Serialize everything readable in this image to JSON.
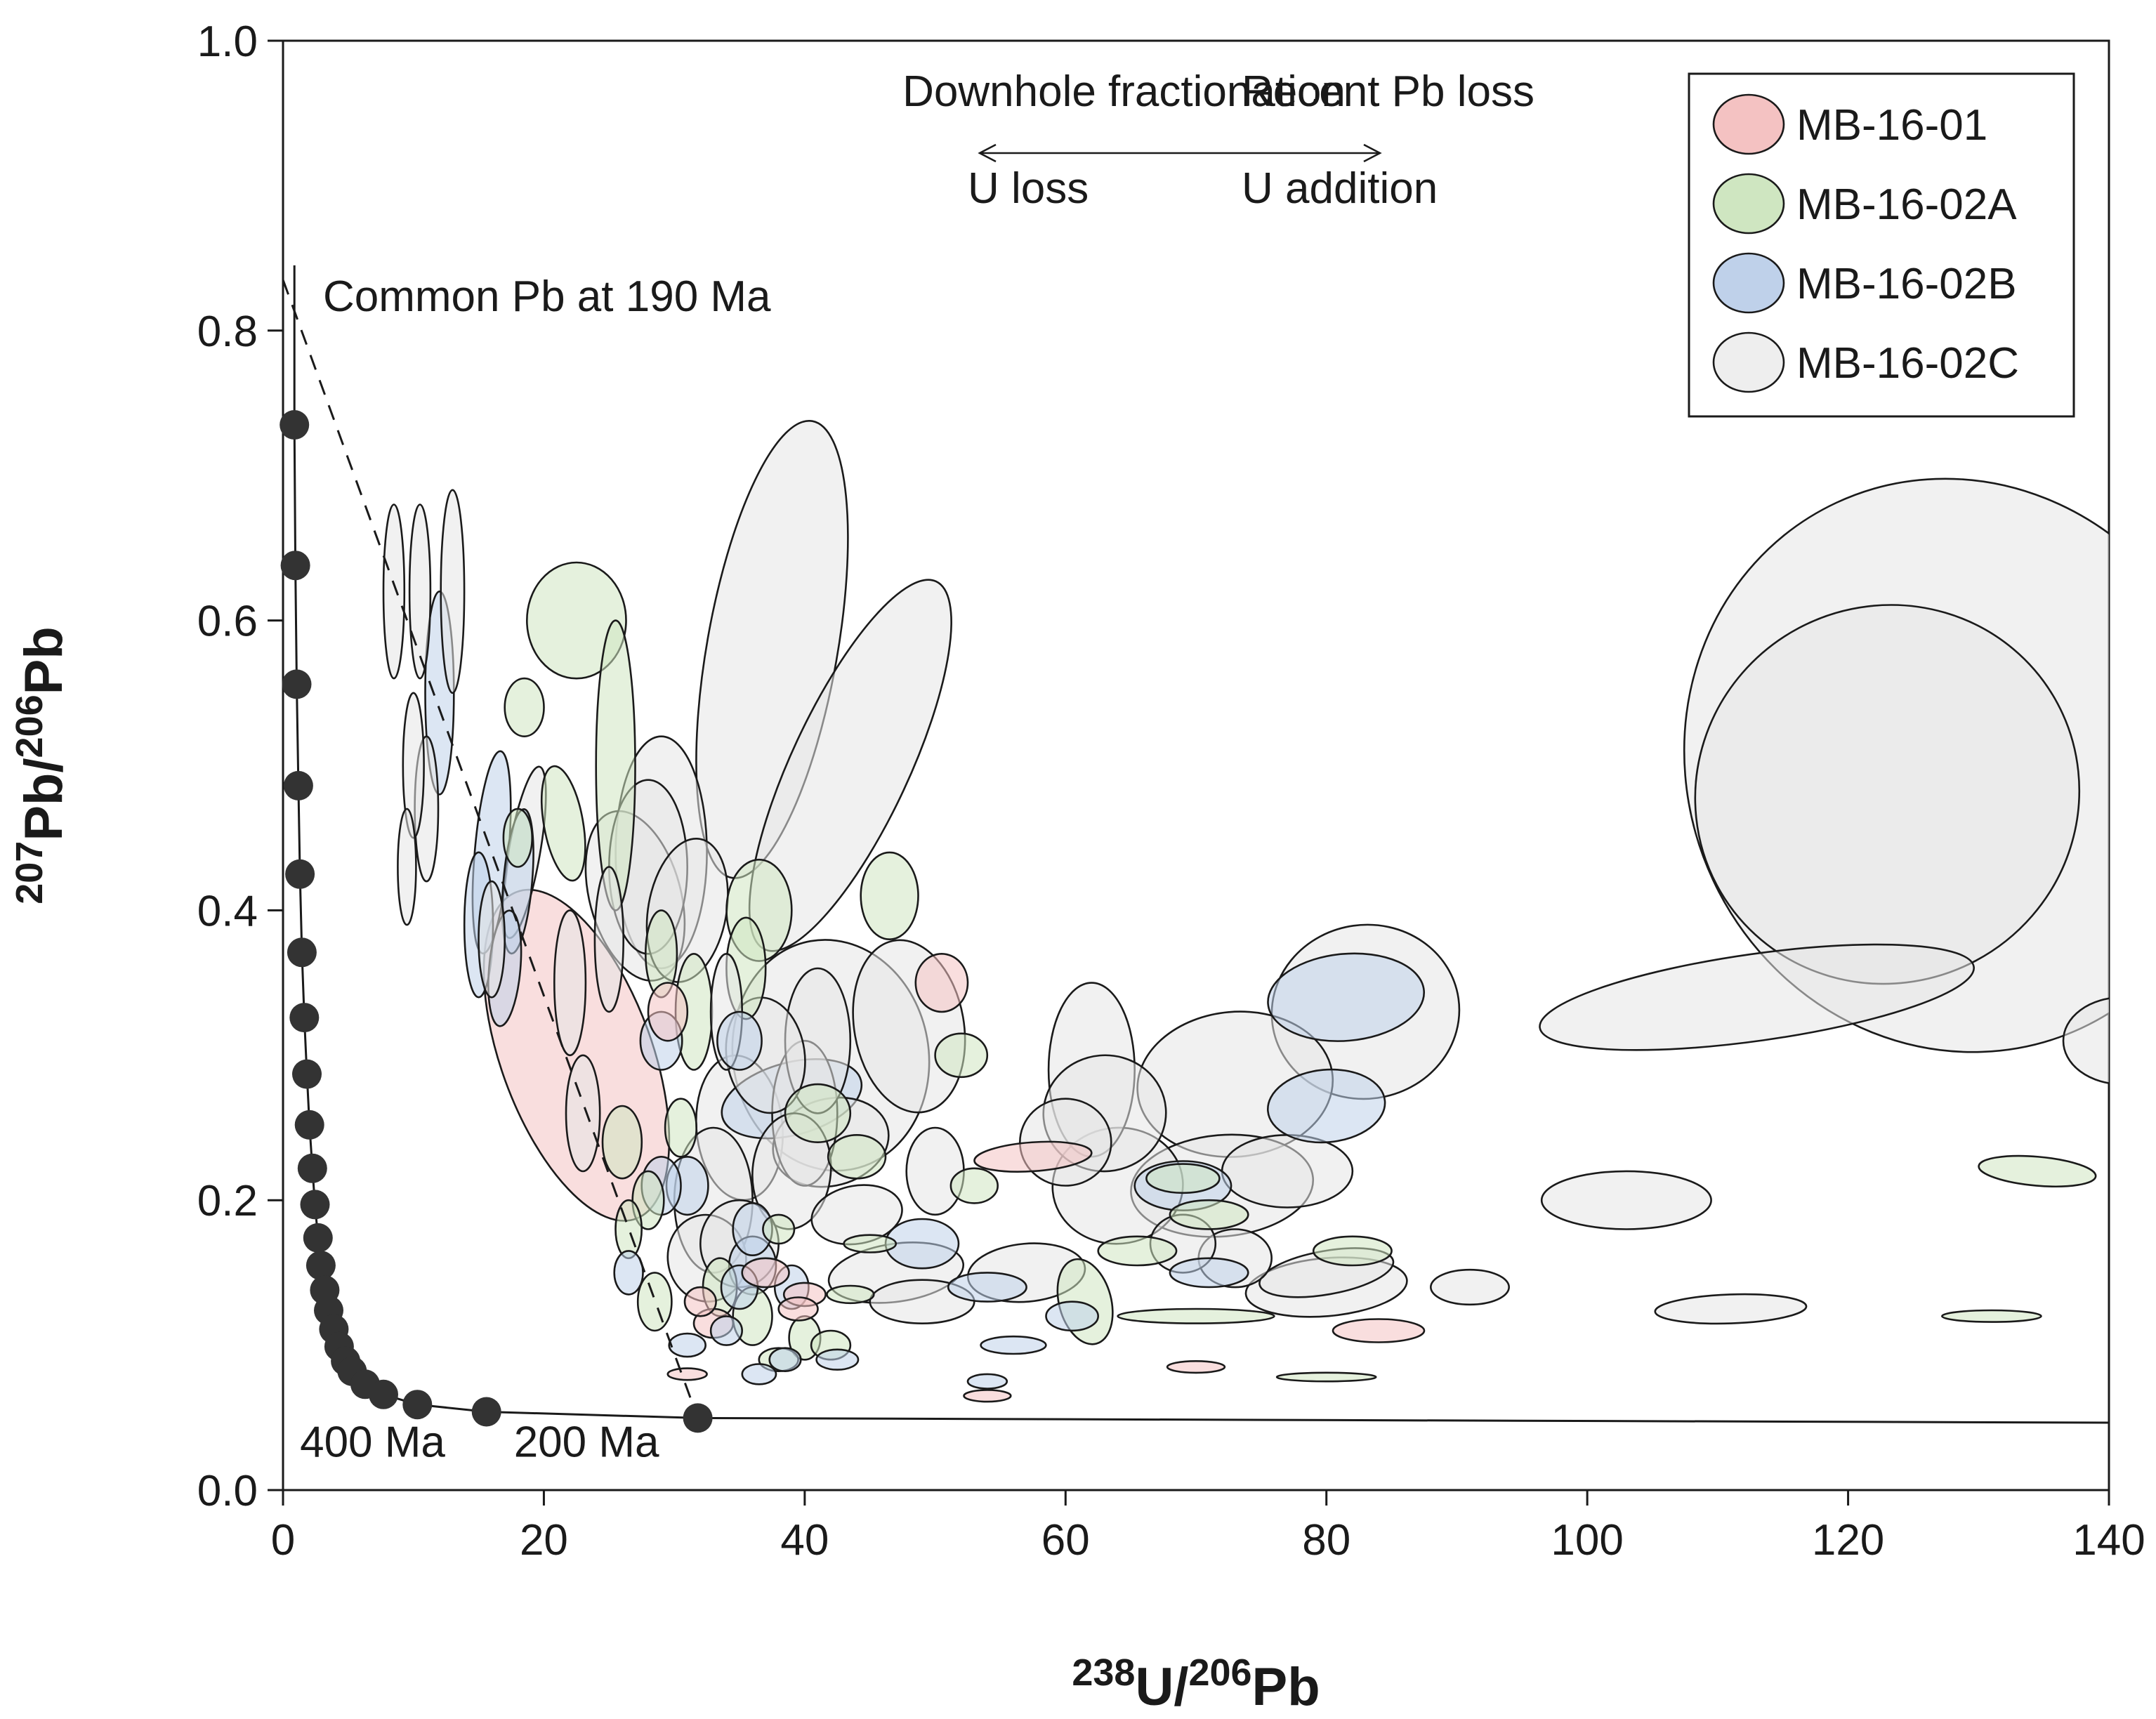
{
  "chart_data": {
    "type": "scatter",
    "subtype": "Tera-Wasserburg concordia diagram with error ellipses",
    "xlabel": {
      "sup1": "238",
      "t1": "U/",
      "sup2": "206",
      "t2": "Pb"
    },
    "ylabel": {
      "sup1": "207",
      "t1": "Pb/",
      "sup2": "206",
      "t2": "Pb"
    },
    "xlim": [
      0,
      140
    ],
    "ylim": [
      0,
      1.0
    ],
    "x_ticks": [
      0,
      20,
      40,
      60,
      80,
      100,
      120,
      140
    ],
    "y_ticks": [
      0.0,
      0.2,
      0.4,
      0.6,
      0.8,
      1.0
    ],
    "y_tick_labels": [
      "0.0",
      "0.2",
      "0.4",
      "0.6",
      "0.8",
      "1.0"
    ],
    "grid": false,
    "legend_position": "top-right",
    "colors": {
      "MB-16-01": "#f4c2c2",
      "MB-16-02A": "#cfe6c1",
      "MB-16-02B": "#bfd1ea",
      "MB-16-02C": "#e6e6e6",
      "concordia": "#1a1a1a",
      "marker": "#333333"
    },
    "series": [
      {
        "name": "MB-16-01",
        "key": "r"
      },
      {
        "name": "MB-16-02A",
        "key": "g"
      },
      {
        "name": "MB-16-02B",
        "key": "b"
      },
      {
        "name": "MB-16-02C",
        "key": "w"
      }
    ],
    "concordia_points": [
      [
        0.87,
        0.735
      ],
      [
        0.95,
        0.638
      ],
      [
        1.05,
        0.556
      ],
      [
        1.18,
        0.486
      ],
      [
        1.3,
        0.425
      ],
      [
        1.45,
        0.371
      ],
      [
        1.63,
        0.326
      ],
      [
        1.83,
        0.287
      ],
      [
        2.03,
        0.252
      ],
      [
        2.25,
        0.222
      ],
      [
        2.45,
        0.197
      ],
      [
        2.68,
        0.174
      ],
      [
        2.9,
        0.155
      ],
      [
        3.2,
        0.138
      ],
      [
        3.5,
        0.124
      ],
      [
        3.9,
        0.111
      ],
      [
        4.3,
        0.099
      ],
      [
        4.8,
        0.089
      ],
      [
        5.3,
        0.082
      ],
      [
        6.3,
        0.073
      ],
      [
        7.7,
        0.066
      ],
      [
        10.3,
        0.059
      ],
      [
        15.6,
        0.054
      ],
      [
        31.8,
        0.0497
      ]
    ],
    "concordia_labels": [
      {
        "text": "400 Ma",
        "x": 1.3,
        "y": 0.023
      },
      {
        "text": "200 Ma",
        "x": 17.7,
        "y": 0.023
      }
    ],
    "common_pb_line": {
      "label": "Common Pb at 190 Ma",
      "from": [
        0,
        0.835
      ],
      "to": [
        31.8,
        0.0497
      ]
    },
    "annotations": [
      {
        "text": "Downhole fractionation",
        "x": 47.5,
        "y": 0.955
      },
      {
        "text": "Recent Pb loss",
        "x": 73.5,
        "y": 0.955
      },
      {
        "text": "U loss",
        "x": 52.5,
        "y": 0.888
      },
      {
        "text": "U addition",
        "x": 73.5,
        "y": 0.888
      }
    ],
    "ellipses": [
      [
        "w",
        128.5,
        0.5,
        20.8,
        0.2,
        -25
      ],
      [
        "w",
        123,
        0.48,
        14.8,
        0.13,
        -28
      ],
      [
        "w",
        141,
        0.31,
        4.5,
        0.03,
        0
      ],
      [
        "w",
        113,
        0.34,
        16.8,
        0.03,
        -8
      ],
      [
        "w",
        83,
        0.33,
        7.2,
        0.06,
        -8
      ],
      [
        "w",
        73,
        0.28,
        7.5,
        0.05,
        -5
      ],
      [
        "w",
        62,
        0.29,
        3.3,
        0.06,
        0
      ],
      [
        "w",
        63,
        0.26,
        4.7,
        0.04,
        -5
      ],
      [
        "w",
        60,
        0.24,
        3.5,
        0.03,
        0
      ],
      [
        "w",
        64,
        0.21,
        5.0,
        0.04,
        -5
      ],
      [
        "w",
        72,
        0.21,
        7.0,
        0.035,
        -5
      ],
      [
        "w",
        77,
        0.22,
        5.0,
        0.025,
        0
      ],
      [
        "w",
        103,
        0.2,
        6.5,
        0.02,
        0
      ],
      [
        "w",
        111,
        0.125,
        5.8,
        0.01,
        -2
      ],
      [
        "w",
        91,
        0.14,
        3.0,
        0.012,
        0
      ],
      [
        "w",
        80,
        0.14,
        6.2,
        0.02,
        -5
      ],
      [
        "w",
        80,
        0.15,
        5.2,
        0.015,
        -10
      ],
      [
        "w",
        57,
        0.15,
        4.5,
        0.02,
        -5
      ],
      [
        "w",
        47,
        0.15,
        5.2,
        0.02,
        -8
      ],
      [
        "w",
        44,
        0.19,
        3.5,
        0.02,
        -10
      ],
      [
        "w",
        42,
        0.24,
        4.5,
        0.03,
        -15
      ],
      [
        "w",
        48,
        0.32,
        4.2,
        0.06,
        -10
      ],
      [
        "w",
        42,
        0.3,
        7.5,
        0.08,
        -10
      ],
      [
        "w",
        37.5,
        0.58,
        5.0,
        0.16,
        10
      ],
      [
        "w",
        43.5,
        0.5,
        4.5,
        0.14,
        25
      ],
      [
        "w",
        29,
        0.44,
        3.5,
        0.08,
        0
      ],
      [
        "w",
        28,
        0.43,
        3.0,
        0.06,
        0
      ],
      [
        "w",
        27,
        0.41,
        3.5,
        0.06,
        -15
      ],
      [
        "w",
        31,
        0.4,
        3.0,
        0.05,
        10
      ],
      [
        "w",
        37,
        0.3,
        3.0,
        0.04,
        -8
      ],
      [
        "w",
        35,
        0.25,
        3.3,
        0.05,
        -5
      ],
      [
        "w",
        33,
        0.2,
        3.0,
        0.05,
        0
      ],
      [
        "w",
        32.5,
        0.16,
        3.0,
        0.03,
        -8
      ],
      [
        "w",
        35,
        0.17,
        3.0,
        0.03,
        0
      ],
      [
        "w",
        39,
        0.22,
        3.0,
        0.04,
        5
      ],
      [
        "w",
        40,
        0.26,
        2.5,
        0.05,
        0
      ],
      [
        "w",
        41,
        0.31,
        2.5,
        0.05,
        0
      ],
      [
        "w",
        50,
        0.22,
        2.2,
        0.03,
        0
      ],
      [
        "w",
        49,
        0.13,
        4.0,
        0.015,
        0
      ],
      [
        "w",
        69,
        0.17,
        2.5,
        0.02,
        0
      ],
      [
        "w",
        73,
        0.16,
        2.8,
        0.02,
        0
      ],
      [
        "w",
        13,
        0.62,
        0.9,
        0.07,
        0
      ],
      [
        "w",
        8.5,
        0.62,
        0.8,
        0.06,
        0
      ],
      [
        "w",
        10.5,
        0.62,
        0.8,
        0.06,
        0
      ],
      [
        "w",
        10,
        0.5,
        0.8,
        0.05,
        0
      ],
      [
        "w",
        11,
        0.47,
        0.9,
        0.05,
        0
      ],
      [
        "w",
        9.5,
        0.43,
        0.7,
        0.04,
        0
      ],
      [
        "w",
        16,
        0.38,
        1.0,
        0.04,
        0
      ],
      [
        "w",
        18.5,
        0.44,
        1.2,
        0.06,
        10
      ],
      [
        "w",
        22,
        0.35,
        1.2,
        0.05,
        0
      ],
      [
        "w",
        25,
        0.38,
        1.1,
        0.05,
        0
      ],
      [
        "w",
        23,
        0.26,
        1.3,
        0.04,
        0
      ],
      [
        "w",
        34,
        0.33,
        1.2,
        0.04,
        0
      ],
      [
        "r",
        22.5,
        0.3,
        5.8,
        0.12,
        -20
      ],
      [
        "r",
        50.5,
        0.35,
        2.0,
        0.02,
        0
      ],
      [
        "r",
        29.5,
        0.33,
        1.5,
        0.02,
        0
      ],
      [
        "r",
        57.5,
        0.23,
        4.5,
        0.01,
        -4
      ],
      [
        "r",
        84,
        0.11,
        3.5,
        0.008,
        0
      ],
      [
        "r",
        70,
        0.085,
        2.2,
        0.004,
        0
      ],
      [
        "r",
        37,
        0.15,
        1.8,
        0.01,
        0
      ],
      [
        "r",
        40,
        0.135,
        1.6,
        0.008,
        0
      ],
      [
        "r",
        32,
        0.13,
        1.2,
        0.01,
        0
      ],
      [
        "r",
        33,
        0.115,
        1.5,
        0.01,
        0
      ],
      [
        "r",
        39.5,
        0.125,
        1.5,
        0.008,
        0
      ],
      [
        "r",
        31,
        0.08,
        1.5,
        0.004,
        0
      ],
      [
        "r",
        54,
        0.065,
        1.8,
        0.004,
        0
      ],
      [
        "g",
        22.5,
        0.6,
        3.8,
        0.04,
        0
      ],
      [
        "g",
        18.5,
        0.54,
        1.5,
        0.02,
        0
      ],
      [
        "g",
        25.5,
        0.5,
        1.5,
        0.1,
        0
      ],
      [
        "g",
        21.5,
        0.46,
        1.5,
        0.04,
        -10
      ],
      [
        "g",
        18,
        0.45,
        1.1,
        0.02,
        0
      ],
      [
        "g",
        36.5,
        0.4,
        2.5,
        0.035,
        0
      ],
      [
        "g",
        46.5,
        0.41,
        2.2,
        0.03,
        0
      ],
      [
        "g",
        35.5,
        0.36,
        1.5,
        0.035,
        0
      ],
      [
        "g",
        29,
        0.37,
        1.2,
        0.03,
        0
      ],
      [
        "g",
        31.5,
        0.33,
        1.4,
        0.04,
        0
      ],
      [
        "g",
        52,
        0.3,
        2.0,
        0.015,
        0
      ],
      [
        "g",
        26,
        0.24,
        1.5,
        0.025,
        0
      ],
      [
        "g",
        30.5,
        0.25,
        1.2,
        0.02,
        0
      ],
      [
        "g",
        41,
        0.26,
        2.5,
        0.02,
        0
      ],
      [
        "g",
        44,
        0.23,
        2.2,
        0.015,
        0
      ],
      [
        "g",
        53,
        0.21,
        1.8,
        0.012,
        0
      ],
      [
        "g",
        69,
        0.215,
        2.8,
        0.01,
        0
      ],
      [
        "g",
        71,
        0.19,
        3.0,
        0.01,
        0
      ],
      [
        "g",
        65.5,
        0.165,
        3.0,
        0.01,
        0
      ],
      [
        "g",
        82,
        0.165,
        3.0,
        0.01,
        0
      ],
      [
        "g",
        134.5,
        0.22,
        4.5,
        0.01,
        5
      ],
      [
        "g",
        131,
        0.12,
        3.8,
        0.004,
        0
      ],
      [
        "g",
        70,
        0.12,
        6.0,
        0.005,
        0
      ],
      [
        "g",
        80,
        0.078,
        3.8,
        0.003,
        0
      ],
      [
        "g",
        61.5,
        0.13,
        2.0,
        0.03,
        -15
      ],
      [
        "g",
        45,
        0.17,
        2.0,
        0.006,
        0
      ],
      [
        "g",
        43.5,
        0.135,
        1.8,
        0.006,
        0
      ],
      [
        "g",
        38,
        0.18,
        1.2,
        0.01,
        0
      ],
      [
        "g",
        33.5,
        0.14,
        1.3,
        0.02,
        0
      ],
      [
        "g",
        36,
        0.12,
        1.5,
        0.02,
        0
      ],
      [
        "g",
        28,
        0.2,
        1.2,
        0.02,
        0
      ],
      [
        "g",
        26.5,
        0.18,
        1.0,
        0.02,
        0
      ],
      [
        "g",
        28.5,
        0.13,
        1.3,
        0.02,
        0
      ],
      [
        "g",
        38,
        0.09,
        1.5,
        0.008,
        0
      ],
      [
        "g",
        42,
        0.1,
        1.5,
        0.01,
        0
      ],
      [
        "g",
        40,
        0.105,
        1.2,
        0.015,
        0
      ],
      [
        "b",
        12,
        0.55,
        1.1,
        0.07,
        0
      ],
      [
        "b",
        16,
        0.44,
        1.3,
        0.07,
        5
      ],
      [
        "b",
        15,
        0.39,
        1.1,
        0.05,
        0
      ],
      [
        "b",
        17,
        0.36,
        1.2,
        0.04,
        5
      ],
      [
        "b",
        18,
        0.42,
        1.1,
        0.05,
        5
      ],
      [
        "b",
        81.5,
        0.34,
        6.0,
        0.03,
        -5
      ],
      [
        "b",
        80,
        0.265,
        4.5,
        0.025,
        -5
      ],
      [
        "b",
        69,
        0.21,
        3.7,
        0.017,
        0
      ],
      [
        "b",
        71,
        0.15,
        3.0,
        0.01,
        0
      ],
      [
        "b",
        60.5,
        0.12,
        2.0,
        0.01,
        0
      ],
      [
        "b",
        54,
        0.14,
        3.0,
        0.01,
        0
      ],
      [
        "b",
        56,
        0.1,
        2.5,
        0.006,
        0
      ],
      [
        "b",
        49,
        0.17,
        2.8,
        0.017,
        0
      ],
      [
        "b",
        39,
        0.27,
        5.5,
        0.025,
        -15
      ],
      [
        "b",
        35,
        0.31,
        1.7,
        0.02,
        0
      ],
      [
        "b",
        29,
        0.31,
        1.6,
        0.02,
        0
      ],
      [
        "b",
        29,
        0.21,
        1.5,
        0.02,
        0
      ],
      [
        "b",
        31,
        0.21,
        1.6,
        0.02,
        0
      ],
      [
        "b",
        36,
        0.18,
        1.5,
        0.018,
        0
      ],
      [
        "b",
        36,
        0.155,
        1.8,
        0.02,
        0
      ],
      [
        "b",
        35,
        0.14,
        1.4,
        0.015,
        0
      ],
      [
        "b",
        39,
        0.14,
        1.3,
        0.015,
        0
      ],
      [
        "b",
        38.5,
        0.09,
        1.2,
        0.008,
        0
      ],
      [
        "b",
        42.5,
        0.09,
        1.6,
        0.007,
        0
      ],
      [
        "b",
        31,
        0.1,
        1.4,
        0.008,
        0
      ],
      [
        "b",
        36.5,
        0.08,
        1.3,
        0.007,
        0
      ],
      [
        "b",
        54,
        0.075,
        1.5,
        0.005,
        0
      ],
      [
        "b",
        26.5,
        0.15,
        1.1,
        0.015,
        0
      ],
      [
        "b",
        34,
        0.11,
        1.2,
        0.01,
        0
      ]
    ]
  },
  "legend": {
    "items": [
      {
        "label": "MB-16-01",
        "key": "r"
      },
      {
        "label": "MB-16-02A",
        "key": "g"
      },
      {
        "label": "MB-16-02B",
        "key": "b"
      },
      {
        "label": "MB-16-02C",
        "key": "w"
      }
    ]
  }
}
